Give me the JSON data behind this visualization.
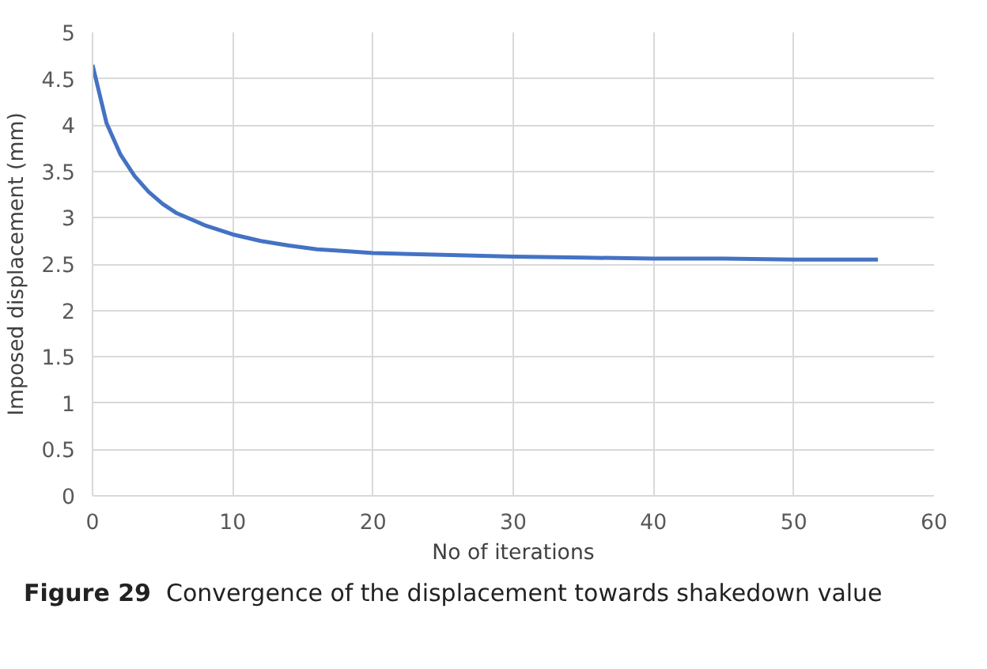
{
  "chart_data": {
    "type": "line",
    "xlabel": "No of iterations",
    "ylabel": "Imposed displacement (mm)",
    "annotations": [
      "Figure 29",
      "Convergence of the displacement towards shakedown value"
    ],
    "series": [
      {
        "color": "#4472c4",
        "x": [
          0,
          1,
          2,
          3,
          4,
          5,
          6,
          8,
          10,
          12,
          14,
          16,
          18,
          20,
          25,
          30,
          35,
          40,
          45,
          50,
          56
        ],
        "values": [
          4.65,
          4.02,
          3.68,
          3.45,
          3.28,
          3.15,
          3.05,
          2.92,
          2.82,
          2.75,
          2.7,
          2.66,
          2.64,
          2.62,
          2.6,
          2.58,
          2.57,
          2.56,
          2.56,
          2.55,
          2.55
        ]
      }
    ],
    "xlim": [
      0,
      60
    ],
    "xticks": [
      0,
      10,
      20,
      30,
      40,
      50,
      60
    ],
    "ylim": [
      0,
      5
    ],
    "yticks": [
      0,
      0.5,
      1,
      1.5,
      2,
      2.5,
      3,
      3.5,
      4,
      4.5,
      5
    ],
    "grid": true,
    "line_style": "solid",
    "marker": "none"
  }
}
